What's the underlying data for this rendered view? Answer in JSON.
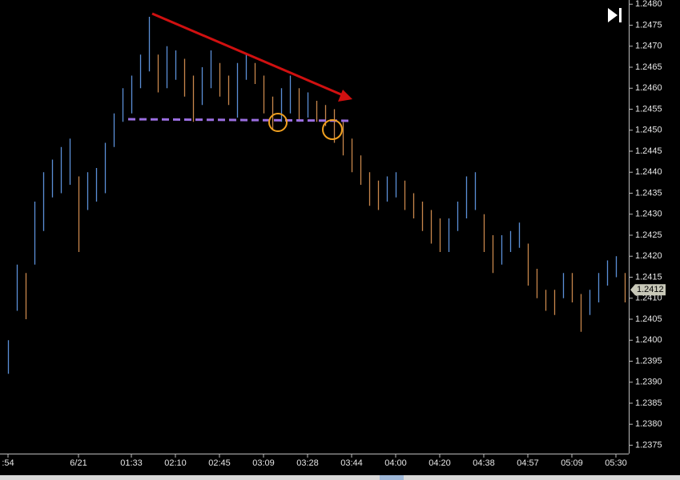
{
  "chart_data": {
    "type": "ohlc",
    "categories": [
      ":54",
      null,
      null,
      null,
      null,
      null,
      null,
      null,
      "6/21",
      null,
      null,
      null,
      null,
      null,
      "01:33",
      null,
      null,
      null,
      null,
      "02:10",
      null,
      null,
      null,
      null,
      "02:45",
      null,
      null,
      null,
      null,
      "03:09",
      null,
      null,
      null,
      null,
      "03:28",
      null,
      null,
      null,
      null,
      "03:44",
      null,
      null,
      null,
      null,
      "04:00",
      null,
      null,
      null,
      null,
      "04:20",
      null,
      null,
      null,
      null,
      "04:38",
      null,
      null,
      null,
      null,
      "04:57",
      null,
      null,
      null,
      null,
      "05:09",
      null,
      null,
      null,
      null,
      "05:30",
      null
    ],
    "high": [
      1.24,
      1.2418,
      1.2416,
      1.2433,
      1.244,
      1.2443,
      1.2446,
      1.2448,
      1.2439,
      1.244,
      1.2441,
      1.2447,
      1.2454,
      1.246,
      1.2463,
      1.2468,
      1.2477,
      1.2468,
      1.247,
      1.2469,
      1.2467,
      1.2463,
      1.2465,
      1.2469,
      1.2466,
      1.2463,
      1.2466,
      1.2468,
      1.2466,
      1.2463,
      1.2458,
      1.246,
      1.2463,
      1.246,
      1.2459,
      1.2457,
      1.2456,
      1.2455,
      1.2452,
      1.2448,
      1.2444,
      1.244,
      1.2438,
      1.2439,
      1.244,
      1.2438,
      1.2435,
      1.2433,
      1.2431,
      1.2429,
      1.2429,
      1.2433,
      1.2439,
      1.244,
      1.243,
      1.2425,
      1.2425,
      1.2426,
      1.2428,
      1.2423,
      1.2417,
      1.2412,
      1.2412,
      1.2416,
      1.2416,
      1.2411,
      1.2412,
      1.2416,
      1.2419,
      1.242,
      1.2416
    ],
    "low": [
      1.2392,
      1.2407,
      1.2405,
      1.2418,
      1.2426,
      1.2434,
      1.2435,
      1.2437,
      1.2421,
      1.2431,
      1.2433,
      1.2435,
      1.2446,
      1.2452,
      1.2454,
      1.246,
      1.2464,
      1.2459,
      1.246,
      1.2462,
      1.2458,
      1.2452,
      1.2456,
      1.246,
      1.2458,
      1.2456,
      1.2453,
      1.2462,
      1.2461,
      1.2454,
      1.245,
      1.2452,
      1.2454,
      1.2452,
      1.2453,
      1.2452,
      1.2451,
      1.2447,
      1.2444,
      1.244,
      1.2437,
      1.2432,
      1.2431,
      1.2433,
      1.2434,
      1.2431,
      1.2429,
      1.2426,
      1.2423,
      1.2421,
      1.2421,
      1.2426,
      1.2429,
      1.2431,
      1.2421,
      1.2416,
      1.2418,
      1.2421,
      1.2422,
      1.2413,
      1.241,
      1.2407,
      1.2406,
      1.241,
      1.2409,
      1.2402,
      1.2406,
      1.2409,
      1.2413,
      1.2415,
      1.2409
    ],
    "up_color": "#5b8fd8",
    "down_color": "#c8874c",
    "ylim": [
      1.2373,
      1.2481
    ],
    "yticks": [
      1.2375,
      {
        "value": 1.238,
        "label": "1.2380"
      },
      1.2385,
      {
        "value": 1.239,
        "label": "1.2390"
      },
      1.2395,
      {
        "value": 1.24,
        "label": "1.2400"
      },
      1.2405,
      {
        "value": 1.241,
        "label": "1.2410"
      },
      1.2415,
      {
        "value": 1.242,
        "label": "1.2420"
      },
      1.2425,
      {
        "value": 1.243,
        "label": "1.2430"
      },
      1.2435,
      {
        "value": 1.244,
        "label": "1.2440"
      },
      1.2445,
      {
        "value": 1.245,
        "label": "1.2450"
      },
      1.2455,
      {
        "value": 1.246,
        "label": "1.2460"
      },
      1.2465,
      {
        "value": 1.247,
        "label": "1.2470"
      },
      1.2475,
      {
        "value": 1.248,
        "label": "1.2480"
      }
    ],
    "last_price": 1.2412
  }
}
